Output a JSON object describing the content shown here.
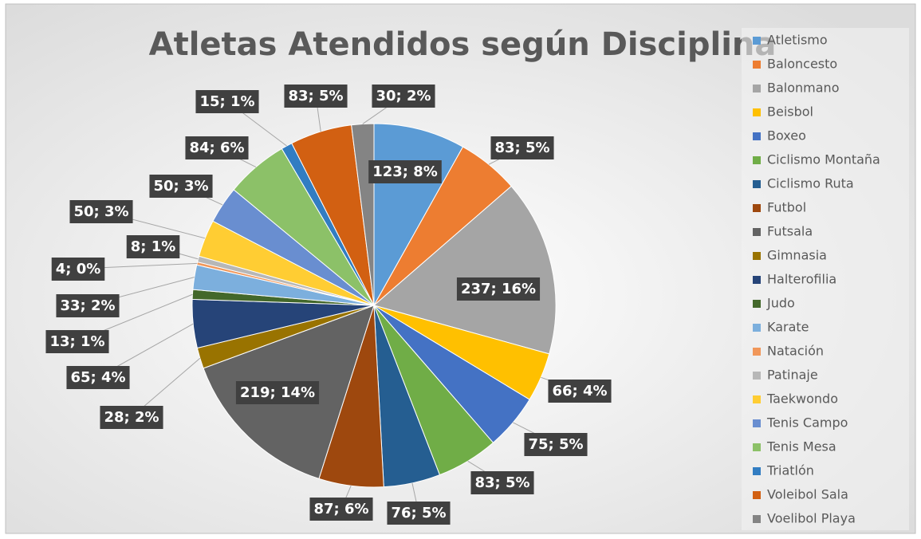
{
  "chart_data": {
    "type": "pie",
    "title": "Atletas Atendidos según Disciplina",
    "categories": [
      "Atletismo",
      "Baloncesto",
      "Balonmano",
      "Beisbol",
      "Boxeo",
      "Ciclismo Montaña",
      "Ciclismo Ruta",
      "Futbol",
      "Futsala",
      "Gimnasia",
      "Halterofilia",
      "Judo",
      "Karate",
      "Natación",
      "Patinaje",
      "Taekwondo",
      "Tenis Campo",
      "Tenis Mesa",
      "Triatlón",
      "Voleibol Sala",
      "Voelibol Playa"
    ],
    "values": [
      123,
      83,
      237,
      66,
      75,
      83,
      76,
      87,
      219,
      28,
      65,
      13,
      33,
      4,
      8,
      50,
      50,
      84,
      15,
      83,
      30
    ],
    "value_labels": [
      "123; 8%",
      "83; 5%",
      "237; 16%",
      "66; 4%",
      "75; 5%",
      "83; 5%",
      "76; 5%",
      "87; 6%",
      "219; 14%",
      "28; 2%",
      "65; 4%",
      "13; 1%",
      "33; 2%",
      "4; 0%",
      "8; 1%",
      "50; 3%",
      "50; 3%",
      "84; 6%",
      "15; 1%",
      "83; 5%",
      "30; 2%"
    ],
    "colors": [
      "#5b9bd5",
      "#ed7d31",
      "#a5a5a5",
      "#ffc000",
      "#4472c4",
      "#70ad47",
      "#255e91",
      "#9e480e",
      "#636363",
      "#997300",
      "#264478",
      "#43682b",
      "#7cafdd",
      "#f1975a",
      "#b7b7b7",
      "#ffcd33",
      "#698ed0",
      "#8cc168",
      "#327dc2",
      "#d26012",
      "#848484"
    ],
    "legend": "right"
  }
}
